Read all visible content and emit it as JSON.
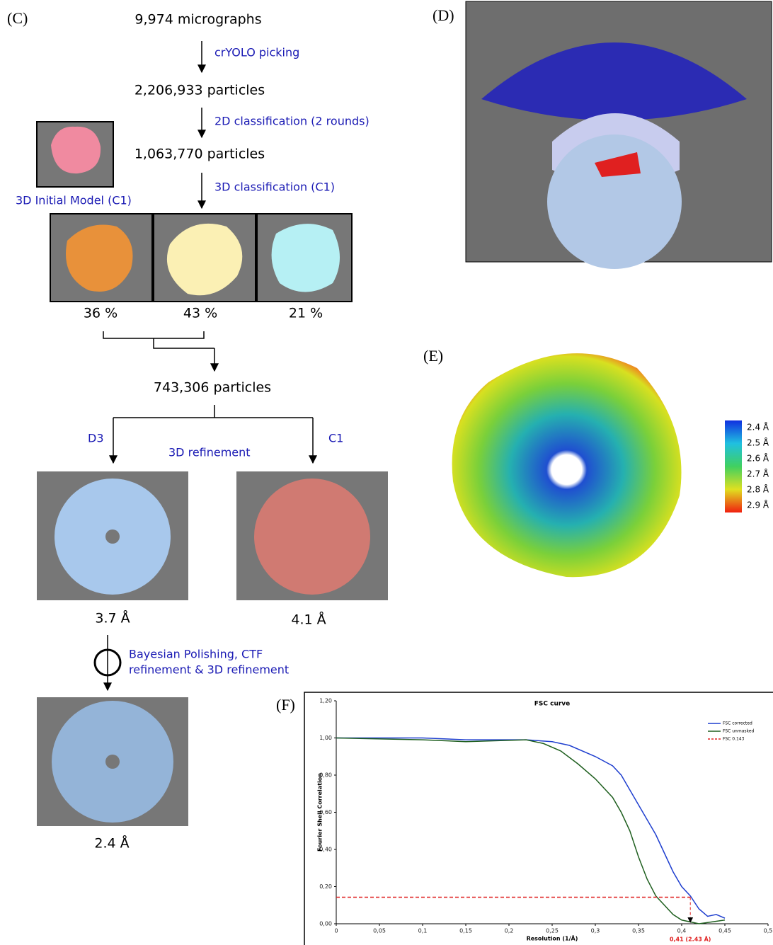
{
  "panel_c": {
    "label": "(C)",
    "steps": [
      "9,974 micrographs",
      "2,206,933 particles",
      "1,063,770 particles",
      "743,306 particles"
    ],
    "operations": [
      "crYOLO picking",
      "2D classification (2 rounds)",
      "3D classification (C1)",
      "3D refinement"
    ],
    "initial_model": "3D Initial Model (C1)",
    "classes": [
      "36 %",
      "43 %",
      "21 %"
    ],
    "symmetries": [
      "D3",
      "C1"
    ],
    "resolutions": [
      "3.7 Å",
      "4.1 Å",
      "2.4 Å"
    ],
    "polishing": [
      "Bayesian Polishing, CTF",
      "refinement & 3D refinement"
    ]
  },
  "panel_d": {
    "label": "(D)"
  },
  "panel_e": {
    "label": "(E)",
    "colorbar": [
      "2.4 Å",
      "2.5 Å",
      "2.6 Å",
      "2.7 Å",
      "2.8 Å",
      "2.9 Å"
    ]
  },
  "panel_f": {
    "label": "(F)"
  },
  "chart_data": {
    "type": "line",
    "title": "FSC curve",
    "x_label": "Resolution (1/Å)",
    "y_label": "Fourier Shell Correlation",
    "xlim": [
      0,
      0.5
    ],
    "ylim": [
      0,
      1.2
    ],
    "xticks": [
      0,
      {
        "value": 0.05,
        "label": "0,05"
      },
      {
        "value": 0.1,
        "label": "0,1"
      },
      {
        "value": 0.15,
        "label": "0,15"
      },
      {
        "value": 0.2,
        "label": "0,2"
      },
      {
        "value": 0.25,
        "label": "0,25"
      },
      {
        "value": 0.3,
        "label": "0,3"
      },
      {
        "value": 0.35,
        "label": "0,35"
      },
      {
        "value": 0.4,
        "label": "0,4"
      },
      {
        "value": 0.45,
        "label": "0,45"
      },
      {
        "value": 0.5,
        "label": "0,5"
      }
    ],
    "yticks": [
      {
        "value": 0,
        "label": "0,00"
      },
      {
        "value": 0.2,
        "label": "0,20"
      },
      {
        "value": 0.4,
        "label": "0,40"
      },
      {
        "value": 0.6,
        "label": "0,60"
      },
      {
        "value": 0.8,
        "label": "0,80"
      },
      {
        "value": 1,
        "label": "1,00"
      },
      {
        "value": 1.2,
        "label": "1,20"
      }
    ],
    "series": [
      {
        "name": "FSC corrected",
        "color": "#1f3fcf",
        "dashed": false,
        "x": [
          0,
          0.1,
          0.15,
          0.22,
          0.25,
          0.27,
          0.3,
          0.32,
          0.33,
          0.34,
          0.35,
          0.36,
          0.37,
          0.38,
          0.39,
          0.4,
          0.41,
          0.42,
          0.43,
          0.44,
          0.45
        ],
        "values": [
          1,
          1,
          0.99,
          0.99,
          0.98,
          0.96,
          0.9,
          0.85,
          0.8,
          0.72,
          0.64,
          0.56,
          0.48,
          0.38,
          0.28,
          0.2,
          0.15,
          0.08,
          0.04,
          0.05,
          0.03
        ]
      },
      {
        "name": "FSC unmasked",
        "color": "#1f5f1f",
        "dashed": false,
        "x": [
          0,
          0.1,
          0.15,
          0.22,
          0.24,
          0.26,
          0.28,
          0.3,
          0.32,
          0.33,
          0.34,
          0.35,
          0.36,
          0.37,
          0.38,
          0.39,
          0.4,
          0.41,
          0.42,
          0.45
        ],
        "values": [
          1,
          0.99,
          0.98,
          0.99,
          0.97,
          0.93,
          0.86,
          0.78,
          0.68,
          0.6,
          0.5,
          0.36,
          0.24,
          0.15,
          0.1,
          0.05,
          0.02,
          0.01,
          0,
          0.02
        ]
      },
      {
        "name": "FSC 0.143",
        "color": "#e02020",
        "dashed": true,
        "x": [
          0,
          0.41
        ],
        "values": [
          0.143,
          0.143
        ]
      }
    ],
    "annotation": "0,41 (2.43 Å)",
    "annotation_x": 0.41,
    "legend": "upper right"
  }
}
